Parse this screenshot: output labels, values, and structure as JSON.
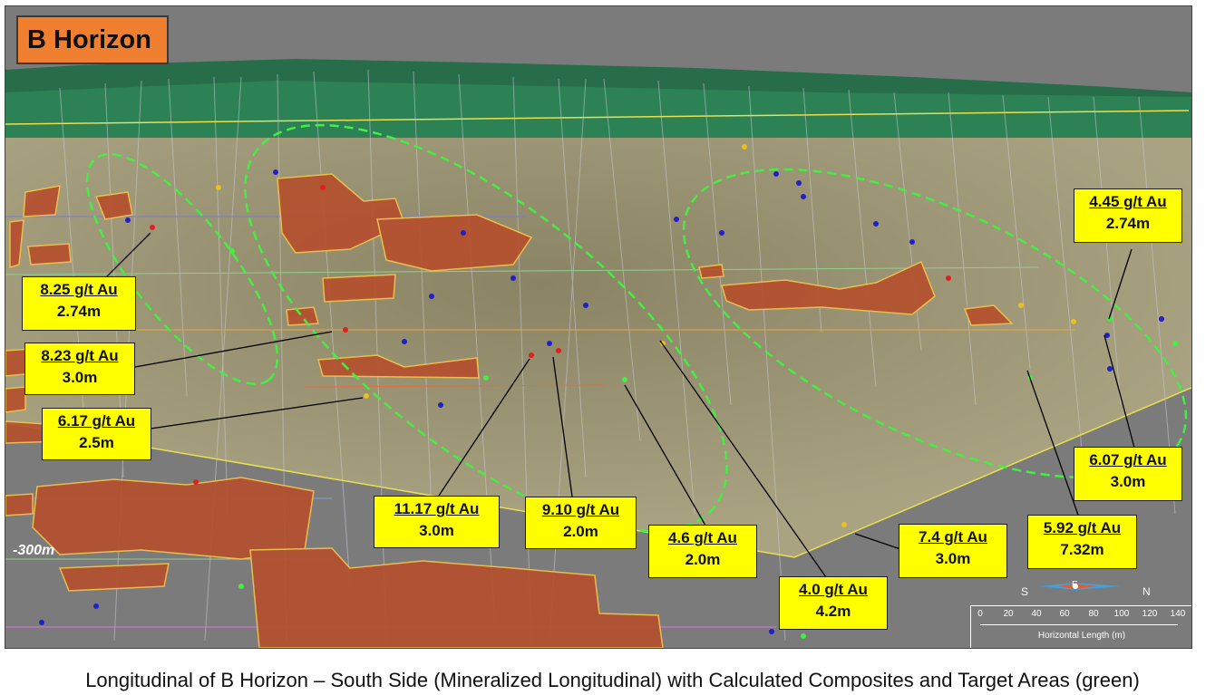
{
  "title": "B Horizon",
  "depth_label": "-300m",
  "compass": {
    "south": "S",
    "north": "N",
    "marker": "E"
  },
  "scale_bar": {
    "ticks": [
      "0",
      "20",
      "40",
      "60",
      "80",
      "100",
      "120",
      "140"
    ],
    "caption": "Horizontal Length (m)"
  },
  "callouts": [
    {
      "grade": "8.25 g/t Au",
      "width": "2.74m"
    },
    {
      "grade": "8.23 g/t Au",
      "width": "3.0m"
    },
    {
      "grade": "6.17 g/t Au",
      "width": "2.5m"
    },
    {
      "grade": "11.17 g/t Au",
      "width": "3.0m"
    },
    {
      "grade": "9.10 g/t Au",
      "width": "2.0m"
    },
    {
      "grade": "4.6 g/t Au",
      "width": "2.0m"
    },
    {
      "grade": "4.0 g/t Au",
      "width": "4.2m"
    },
    {
      "grade": "7.4 g/t Au",
      "width": "3.0m"
    },
    {
      "grade": "5.92 g/t Au",
      "width": "7.32m"
    },
    {
      "grade": "6.07 g/t Au",
      "width": "3.0m"
    },
    {
      "grade": "4.45 g/t Au",
      "width": "2.74m"
    }
  ],
  "caption": "Longitudinal of B Horizon – South Side (Mineralized Longitudinal) with Calculated Composites and Target Areas (green)",
  "colors": {
    "callout_fill": "#ffff00",
    "title_fill": "#f08030",
    "target_outline": "#44ee44",
    "mineralized_fill": "#b5502e",
    "mineralized_outline": "#f2c24a"
  }
}
